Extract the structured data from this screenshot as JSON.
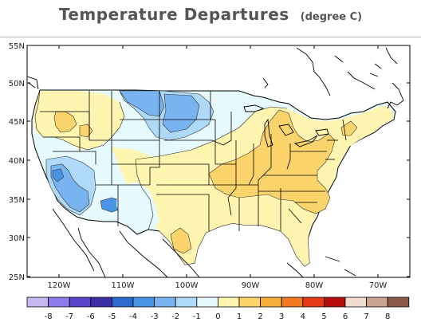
{
  "title": "Temperature Departures",
  "subtitle": "(degree C)",
  "map": {
    "lat_labels": [
      "55N",
      "50N",
      "45N",
      "40N",
      "35N",
      "30N",
      "25N"
    ],
    "lon_labels": [
      "120W",
      "110W",
      "100W",
      "90W",
      "80W",
      "70W"
    ]
  },
  "colorbar": {
    "labels": [
      "-8",
      "-7",
      "-6",
      "-5",
      "-4",
      "-3",
      "-2",
      "-1",
      "0",
      "1",
      "2",
      "3",
      "4",
      "5",
      "6",
      "7",
      "8"
    ],
    "colors": [
      "#c9b8f0",
      "#8f7cea",
      "#5a44c8",
      "#3a2fa6",
      "#2e6acb",
      "#4a94e6",
      "#79b4f1",
      "#aed9f7",
      "#e7fafd",
      "#fff4b0",
      "#fbd46b",
      "#f7ad3c",
      "#f27a23",
      "#e23a12",
      "#b80d0d",
      "#f0ddd0",
      "#c8a590",
      "#8e5a48"
    ]
  }
}
